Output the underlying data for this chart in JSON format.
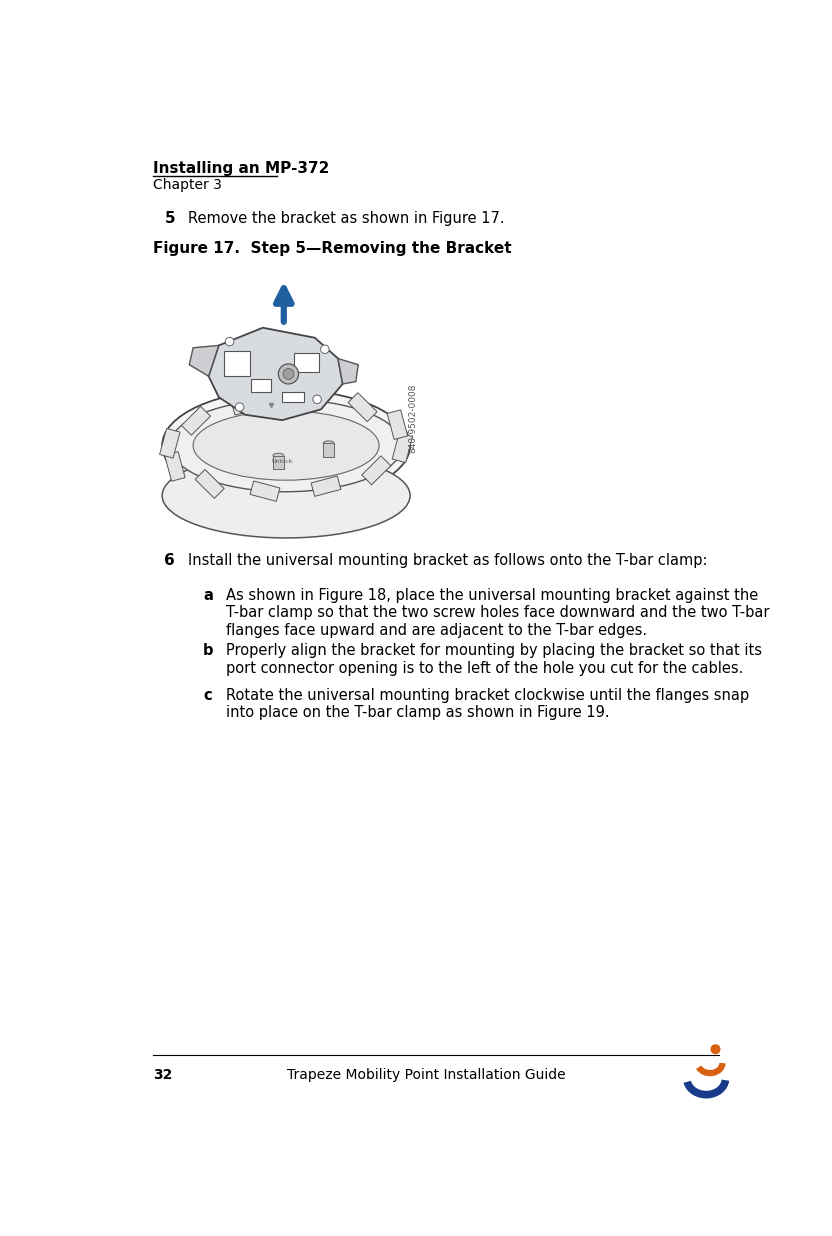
{
  "page_width": 8.32,
  "page_height": 12.36,
  "bg_color": "#ffffff",
  "header_title": "Installing an MP-372",
  "header_chapter": "Chapter 3",
  "footer_page": "32",
  "footer_center": "Trapeze Mobility Point Installation Guide",
  "step5_number": "5",
  "step5_text": "Remove the bracket as shown in Figure 17.",
  "figure_label": "Figure 17.  Step 5—Removing the Bracket",
  "watermark_text": "840-9502-0008",
  "step6_number": "6",
  "step6_text": "Install the universal mounting bracket as follows onto the T-bar clamp:",
  "step6a_letter": "a",
  "step6a_text": "As shown in Figure 18, place the universal mounting bracket against the\nT-bar clamp so that the two screw holes face downward and the two T-bar\nflanges face upward and are adjacent to the T-bar edges.",
  "step6b_letter": "b",
  "step6b_text": "Properly align the bracket for mounting by placing the bracket so that its\nport connector opening is to the left of the hole you cut for the cables.",
  "step6c_letter": "c",
  "step6c_text": "Rotate the universal mounting bracket clockwise until the flanges snap\ninto place on the T-bar clamp as shown in Figure 19.",
  "text_color": "#000000",
  "header_color": "#000000",
  "figure_label_color": "#000000",
  "line_color": "#000000",
  "arrow_color": "#2060a0",
  "body_font_size": 10.5,
  "header_title_fontsize": 11,
  "header_chapter_fontsize": 10,
  "footer_fontsize": 10,
  "figure_label_fontsize": 11,
  "step_number_fontsize": 11,
  "sub_letter_fontsize": 10.5
}
